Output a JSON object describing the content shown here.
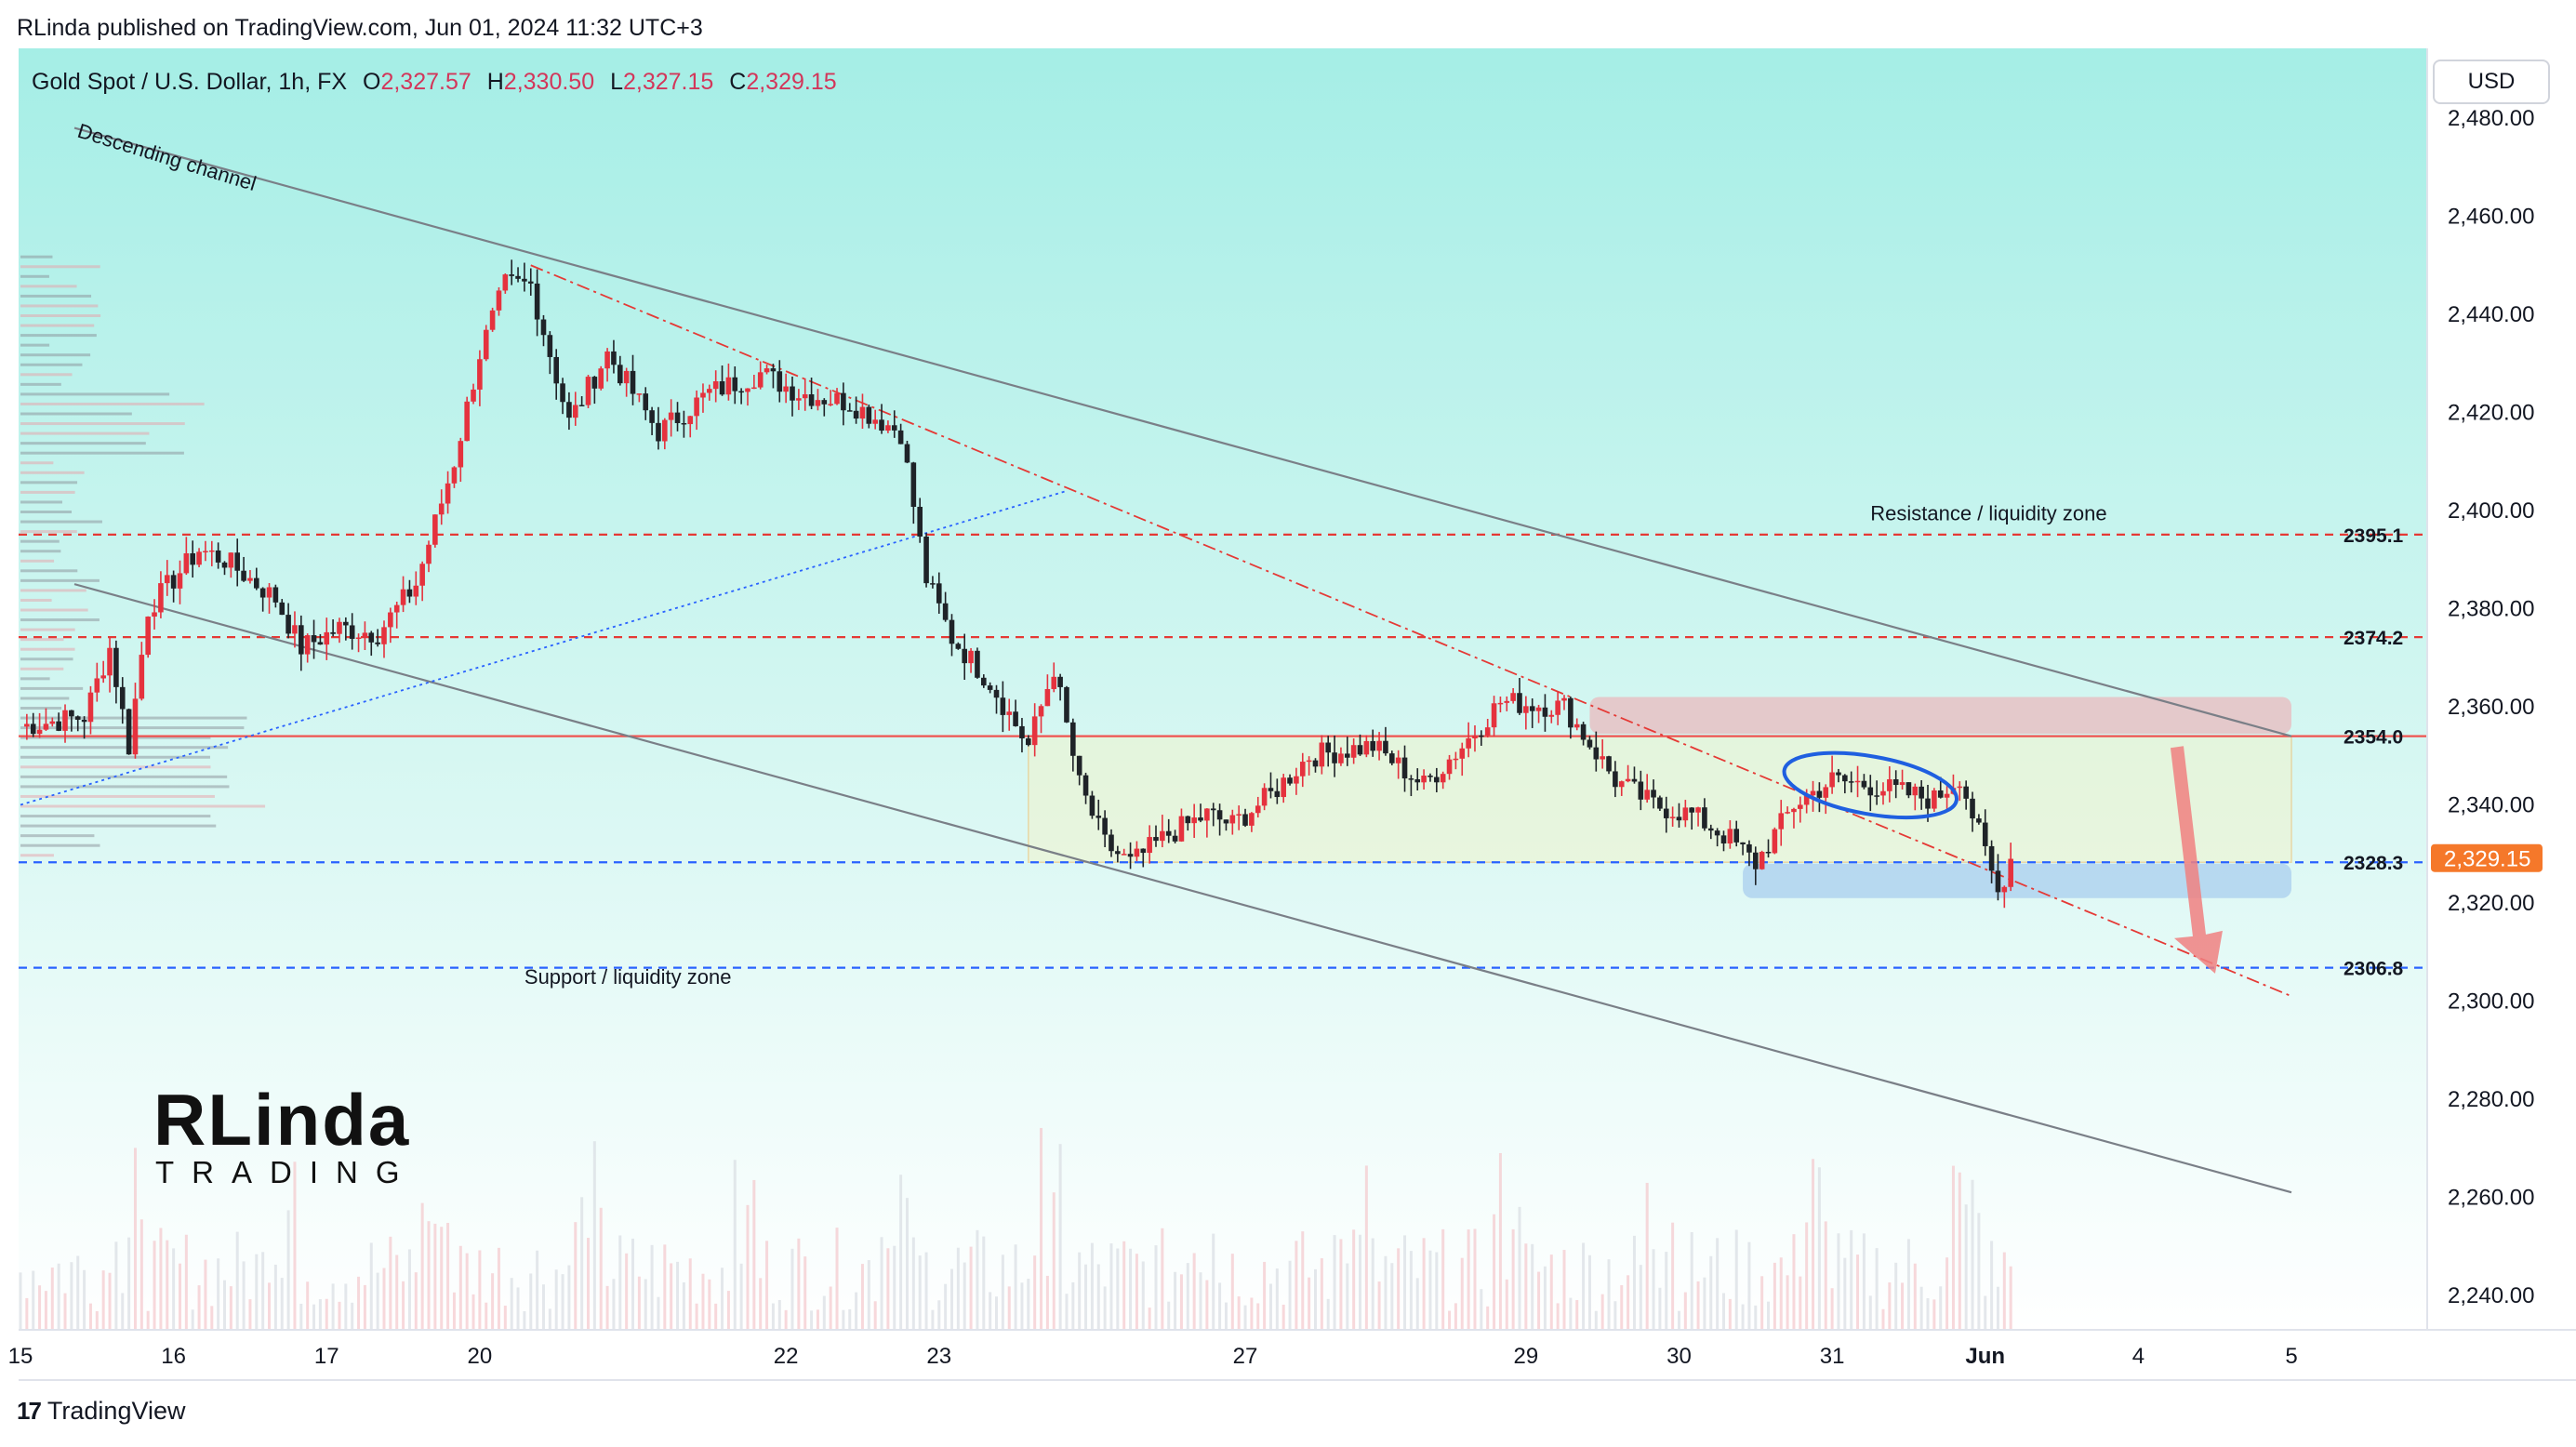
{
  "publisher_line": "RLinda published on TradingView.com, Jun 01, 2024 11:32 UTC+3",
  "symbol_title": "Gold Spot / U.S. Dollar, 1h, FX",
  "ohlc": {
    "o_label": "O",
    "o_value": "2,327.57",
    "h_label": "H",
    "h_value": "2,330.50",
    "l_label": "L",
    "l_value": "2,327.15",
    "c_label": "C",
    "c_value": "2,329.15"
  },
  "currency_button": "USD",
  "footer_brand": "TradingView",
  "footer_logo_glyph": "17",
  "watermark": {
    "top": "RLinda",
    "bottom": "TRADING"
  },
  "colors": {
    "bg_top": "#a5eee6",
    "bg_bottom": "#ffffff",
    "candle_up": "#e5323e",
    "candle_down": "#1f2328",
    "resistance_zone": "#e9b9bd",
    "support_zone": "#a9cdee",
    "level_red": "#e53935",
    "level_blue": "#2962ff",
    "price_tag": "#f5782a",
    "arrow": "#f08080"
  },
  "chart_data": {
    "type": "candlestick",
    "title": "Gold Spot / U.S. Dollar, 1h, FX",
    "ylim": [
      2235,
      2485
    ],
    "y_ticks": [
      "2,480.00",
      "2,460.00",
      "2,440.00",
      "2,420.00",
      "2,400.00",
      "2,380.00",
      "2,360.00",
      "2,340.00",
      "2,320.00",
      "2,300.00",
      "2,280.00",
      "2,260.00",
      "2,240.00"
    ],
    "x_ticks": [
      {
        "label": "15",
        "idx": 0
      },
      {
        "label": "16",
        "idx": 24
      },
      {
        "label": "17",
        "idx": 48
      },
      {
        "label": "20",
        "idx": 72
      },
      {
        "label": "22",
        "idx": 120
      },
      {
        "label": "23",
        "idx": 144
      },
      {
        "label": "27",
        "idx": 192
      },
      {
        "label": "29",
        "idx": 236
      },
      {
        "label": "30",
        "idx": 260
      },
      {
        "label": "31",
        "idx": 284
      },
      {
        "label": "Jun",
        "idx": 308
      },
      {
        "label": "4",
        "idx": 332
      },
      {
        "label": "5",
        "idx": 356
      }
    ],
    "anchors": [
      [
        0,
        2356
      ],
      [
        10,
        2358
      ],
      [
        14,
        2372
      ],
      [
        17,
        2352
      ],
      [
        20,
        2380
      ],
      [
        28,
        2392
      ],
      [
        32,
        2390
      ],
      [
        40,
        2382
      ],
      [
        44,
        2372
      ],
      [
        50,
        2376
      ],
      [
        56,
        2375
      ],
      [
        62,
        2385
      ],
      [
        68,
        2410
      ],
      [
        72,
        2432
      ],
      [
        76,
        2446
      ],
      [
        80,
        2446
      ],
      [
        86,
        2418
      ],
      [
        92,
        2432
      ],
      [
        100,
        2416
      ],
      [
        108,
        2424
      ],
      [
        116,
        2428
      ],
      [
        122,
        2424
      ],
      [
        130,
        2422
      ],
      [
        138,
        2416
      ],
      [
        142,
        2386
      ],
      [
        146,
        2374
      ],
      [
        152,
        2365
      ],
      [
        158,
        2352
      ],
      [
        162,
        2368
      ],
      [
        166,
        2344
      ],
      [
        170,
        2332
      ],
      [
        174,
        2328
      ],
      [
        180,
        2334
      ],
      [
        186,
        2338
      ],
      [
        190,
        2336
      ],
      [
        196,
        2342
      ],
      [
        202,
        2350
      ],
      [
        212,
        2352
      ],
      [
        220,
        2344
      ],
      [
        226,
        2352
      ],
      [
        232,
        2361
      ],
      [
        242,
        2360
      ],
      [
        250,
        2345
      ],
      [
        256,
        2340
      ],
      [
        262,
        2338
      ],
      [
        268,
        2333
      ],
      [
        272,
        2328
      ],
      [
        278,
        2340
      ],
      [
        284,
        2345
      ],
      [
        290,
        2344
      ],
      [
        300,
        2341
      ],
      [
        304,
        2346
      ],
      [
        306,
        2338
      ],
      [
        308,
        2330
      ],
      [
        310,
        2322
      ],
      [
        312,
        2329
      ]
    ],
    "price_levels": [
      {
        "price": 2395.1,
        "label": "2395.1",
        "style": "dashed",
        "color": "#e53935"
      },
      {
        "price": 2374.2,
        "label": "2374.2",
        "style": "dashed",
        "color": "#e53935"
      },
      {
        "price": 2354.0,
        "label": "2354.0",
        "style": "solid",
        "color": "#ef5350"
      },
      {
        "price": 2328.3,
        "label": "2328.3",
        "style": "dashed",
        "color": "#2962ff"
      },
      {
        "price": 2306.8,
        "label": "2306.8",
        "style": "dashed",
        "color": "#2962ff"
      }
    ],
    "last_price": "2,329.15",
    "annotations": {
      "channel": "Descending channel",
      "resistance": "Resistance / liquidity zone",
      "support": "Support / liquidity zone"
    }
  }
}
